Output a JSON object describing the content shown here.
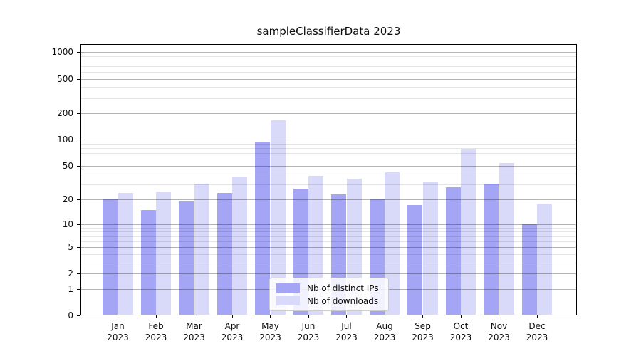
{
  "title": "sampleClassifierData 2023",
  "x_axis": {
    "months": [
      "Jan",
      "Feb",
      "Mar",
      "Apr",
      "May",
      "Jun",
      "Jul",
      "Aug",
      "Sep",
      "Oct",
      "Nov",
      "Dec"
    ],
    "year": "2023"
  },
  "legend": {
    "items": [
      {
        "label": "Nb of distinct IPs",
        "color": "#a4a5f5"
      },
      {
        "label": "Nb of downloads",
        "color": "#d9daf9"
      }
    ]
  },
  "chart_data": {
    "type": "bar",
    "title": "sampleClassifierData 2023",
    "categories": [
      "Jan 2023",
      "Feb 2023",
      "Mar 2023",
      "Apr 2023",
      "May 2023",
      "Jun 2023",
      "Jul 2023",
      "Aug 2023",
      "Sep 2023",
      "Oct 2023",
      "Nov 2023",
      "Dec 2023"
    ],
    "series": [
      {
        "name": "Nb of distinct IPs",
        "color": "#a4a5f5",
        "values": [
          20,
          15,
          19,
          24,
          93,
          27,
          23,
          20,
          17,
          28,
          31,
          10
        ]
      },
      {
        "name": "Nb of downloads",
        "color": "#d9daf9",
        "values": [
          24,
          25,
          31,
          37,
          168,
          38,
          35,
          42,
          32,
          79,
          54,
          18
        ]
      }
    ],
    "yscale": "log1p",
    "y_major_ticks": [
      0,
      1,
      2,
      5,
      10,
      20,
      50,
      100,
      200,
      500,
      1000
    ],
    "y_minor_gridlines": [
      3,
      4,
      6,
      7,
      8,
      9,
      30,
      40,
      60,
      70,
      80,
      90,
      300,
      400,
      600,
      700,
      800,
      900
    ],
    "ylim": [
      0,
      1240
    ],
    "xlabel": "",
    "ylabel": "",
    "grid": "both (gridlines drawn over bars)",
    "legend_position": "lower center"
  },
  "colors": {
    "bar_dark": "#a4a5f5",
    "bar_light": "#d9daf9",
    "grid_major": "rgba(0,0,0,0.29)",
    "grid_minor": "rgba(0,0,0,0.10)",
    "spine": "#000000",
    "text": "#0d0d0d",
    "background": "#ffffff"
  }
}
